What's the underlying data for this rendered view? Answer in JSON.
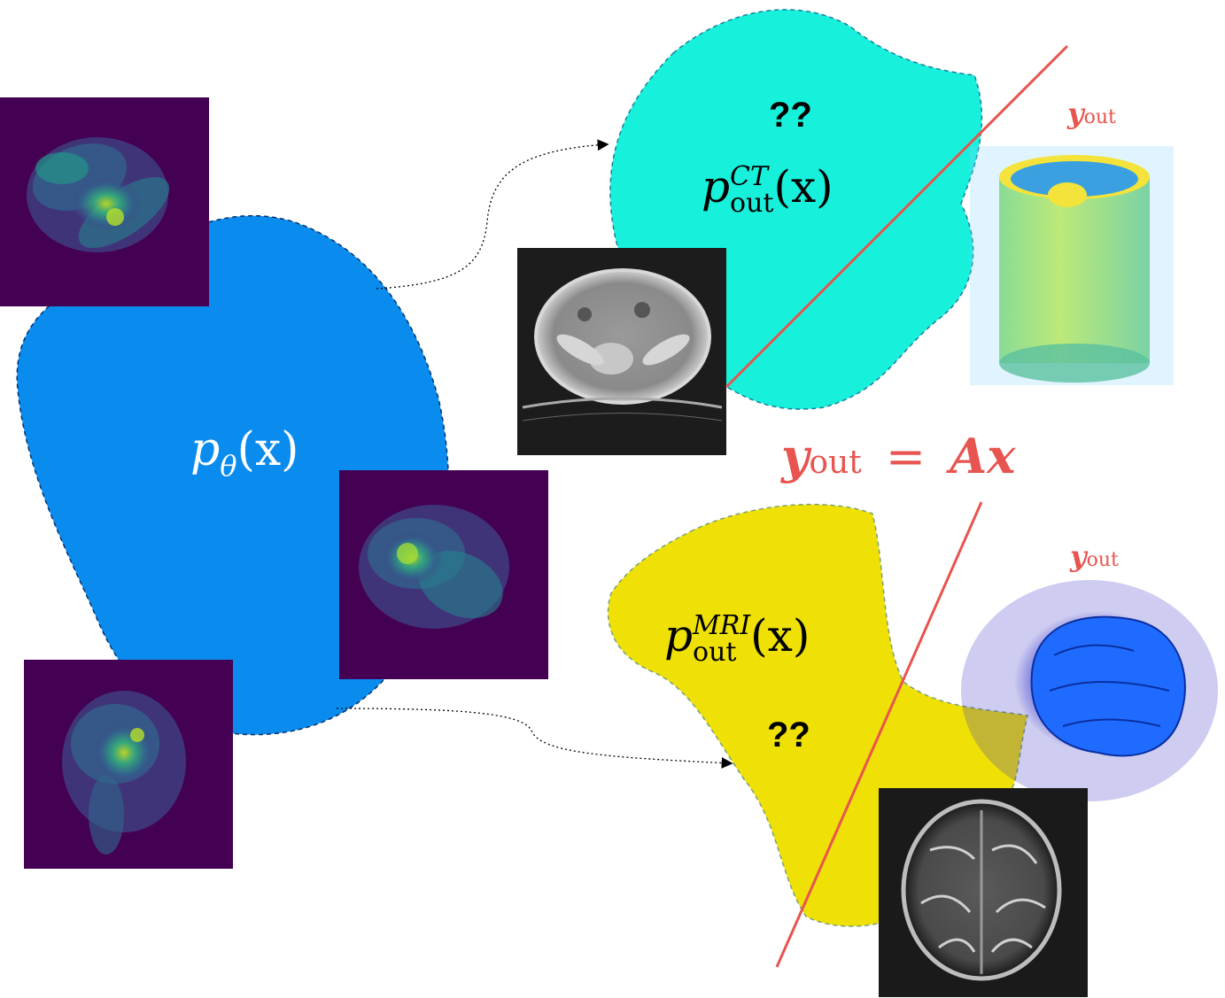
{
  "prior": {
    "symbol": "p",
    "subscript": "θ",
    "argument": "(x)"
  },
  "ct": {
    "symbol": "p",
    "superscript": "CT",
    "subscript": "out",
    "argument": "(x)",
    "unknown": "??",
    "measure_label_main": "y",
    "measure_label_sub": "out"
  },
  "mri": {
    "symbol": "p",
    "superscript": "MRI",
    "subscript": "out",
    "argument": "(x)",
    "unknown": "??",
    "measure_label_main": "y",
    "measure_label_sub": "out"
  },
  "equation": {
    "lhs_main": "y",
    "lhs_sub": "out",
    "equals": "=",
    "rhs": "Ax"
  },
  "colors": {
    "prior_blob": "#0a8cef",
    "ct_blob": "#17f1dc",
    "mri_blob": "#efe006",
    "measure_line": "#e8544f",
    "phantom_bg": "#440154"
  },
  "images": [
    "phantom-sample-1",
    "phantom-sample-2",
    "phantom-sample-3",
    "ct-slice",
    "ct-volume",
    "mri-volume",
    "mri-slice"
  ]
}
